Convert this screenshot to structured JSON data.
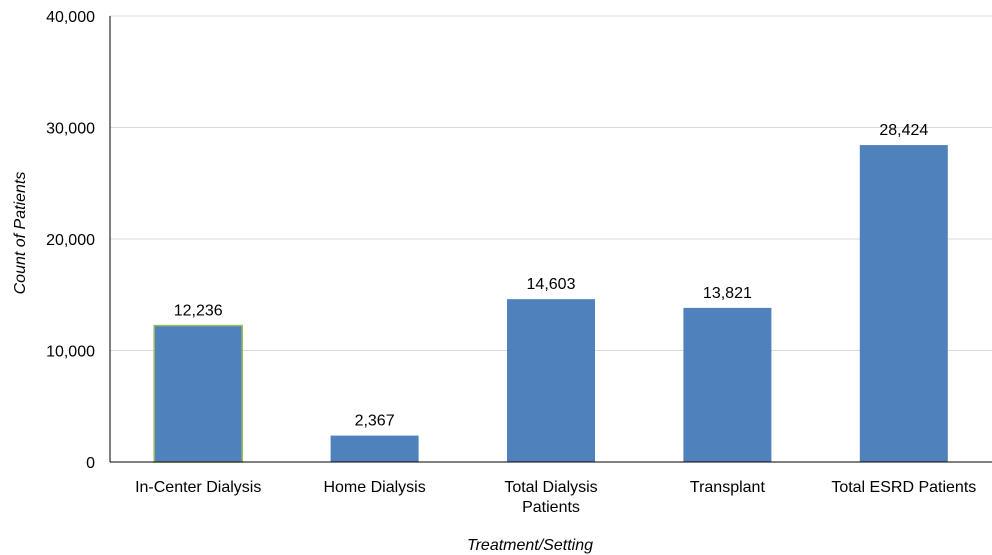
{
  "chart_data": {
    "type": "bar",
    "categories": [
      [
        "In-Center Dialysis"
      ],
      [
        "Home Dialysis"
      ],
      [
        "Total Dialysis",
        "Patients"
      ],
      [
        "Transplant"
      ],
      [
        "Total ESRD Patients"
      ]
    ],
    "values": [
      12236,
      2367,
      14603,
      13821,
      28424
    ],
    "value_labels": [
      "12,236",
      "2,367",
      "14,603",
      "13,821",
      "28,424"
    ],
    "title": "",
    "xlabel": "Treatment/Setting",
    "ylabel": "Count of Patients",
    "ylim": [
      0,
      40000
    ],
    "yticks": [
      0,
      10000,
      20000,
      30000,
      40000
    ],
    "ytick_labels": [
      "0",
      "10,000",
      "20,000",
      "30,000",
      "40,000"
    ],
    "grid": true,
    "legend": "none",
    "colors": {
      "bar": "#4F81BD",
      "highlight_outline": "#9BBB59",
      "grid": "#D9D9D9",
      "axis": "#000000"
    }
  }
}
